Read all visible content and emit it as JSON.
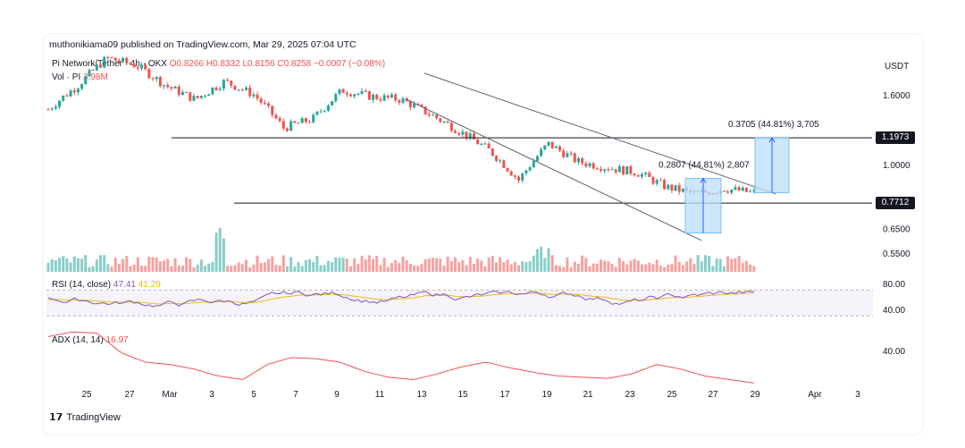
{
  "byline": "muthonikiama09 published on TradingView.com, Mar 29, 2025 07:04 UTC",
  "symbol_legend": {
    "pair": "Pi Network/Tether · 4h · OKX",
    "ohlc": "O0.8266 H0.8332 L0.8156 C0.8258 −0.0007 (−0.08%)"
  },
  "vol_legend": {
    "label": "Vol · PI",
    "value": "3.98M"
  },
  "rsi_legend": {
    "label": "RSI (14, close)",
    "value1": "47.41",
    "value2": "41.29"
  },
  "adx_legend": {
    "label": "ADX (14, 14)",
    "value": "16.97"
  },
  "currency": "USDT",
  "brand": "TradingView",
  "colors": {
    "up": "#26a69a",
    "down": "#ef5350",
    "rsi": "#7e57c2",
    "rsi_ma": "#f0b90b",
    "adx": "#ef5350",
    "range_fill": "#bbdefb"
  },
  "chart_data": [
    {
      "type": "candlestick",
      "title": "Pi Network/Tether · 4h · OKX",
      "y_axis_labels": [
        "1.6000",
        "1.0000",
        "0.6500",
        "0.5500"
      ],
      "ylim": [
        0.5,
        2.2
      ],
      "scale": "log",
      "x_ticks": [
        "25",
        "27",
        "Mar",
        "3",
        "5",
        "7",
        "9",
        "11",
        "13",
        "15",
        "17",
        "19",
        "21",
        "23",
        "25",
        "27",
        "29",
        "Apr",
        "3"
      ],
      "horizontal_levels": [
        {
          "price": 1.1973,
          "label": "1.1973"
        },
        {
          "price": 0.7712,
          "label": "0.7712"
        }
      ],
      "measurements": [
        {
          "label": "0.2807 (44.81%) 2,807",
          "from": 0.63,
          "to": 0.9107
        },
        {
          "label": "0.3705 (44.81%) 3,705",
          "from": 0.827,
          "to": 1.1973
        }
      ],
      "close_series_approx": [
        1.45,
        1.7,
        2.05,
        1.95,
        1.7,
        1.55,
        1.75,
        1.6,
        1.28,
        1.36,
        1.65,
        1.58,
        1.55,
        1.4,
        1.25,
        1.1,
        0.9,
        1.15,
        1.02,
        0.98,
        0.95,
        0.86,
        0.82,
        0.85,
        0.826
      ]
    },
    {
      "type": "bar",
      "title": "Vol · PI",
      "series_name": "Volume"
    },
    {
      "type": "line",
      "title": "RSI (14, close)",
      "y_axis_labels": [
        "80.00",
        "40.00"
      ],
      "ylim": [
        20,
        90
      ]
    },
    {
      "type": "line",
      "title": "ADX (14, 14)",
      "y_axis_labels": [
        "40.00"
      ],
      "ylim": [
        0,
        60
      ]
    }
  ]
}
